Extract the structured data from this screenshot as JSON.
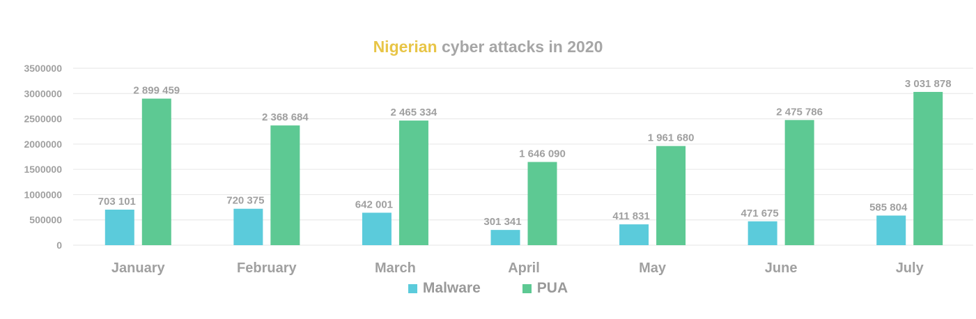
{
  "chart_data": {
    "type": "bar",
    "title_parts": [
      {
        "text": "Nigerian",
        "color": "#e8c547"
      },
      {
        "text": " cyber attacks in 2020",
        "color": "#a6a6a6"
      }
    ],
    "categories": [
      "January",
      "February",
      "March",
      "April",
      "May",
      "June",
      "July"
    ],
    "series": [
      {
        "name": "Malware",
        "color": "#5bcbdb",
        "values": [
          703101,
          720375,
          642001,
          301341,
          411831,
          471675,
          585804
        ],
        "labels": [
          "703 101",
          "720 375",
          "642 001",
          "301 341",
          "411 831",
          "471 675",
          "585 804"
        ]
      },
      {
        "name": "PUA",
        "color": "#5dc993",
        "values": [
          2899459,
          2368684,
          2465334,
          1646090,
          1961680,
          2475786,
          3031878
        ],
        "labels": [
          "2 899 459",
          "2 368 684",
          "2 465 334",
          "1 646 090",
          "1 961 680",
          "2 475 786",
          "3 031 878"
        ]
      }
    ],
    "yticks": [
      "0",
      "500000",
      "1000000",
      "1500000",
      "2000000",
      "2500000",
      "3000000",
      "3500000"
    ],
    "ylim": [
      0,
      3500000
    ],
    "grid": true,
    "legend_position": "bottom"
  }
}
